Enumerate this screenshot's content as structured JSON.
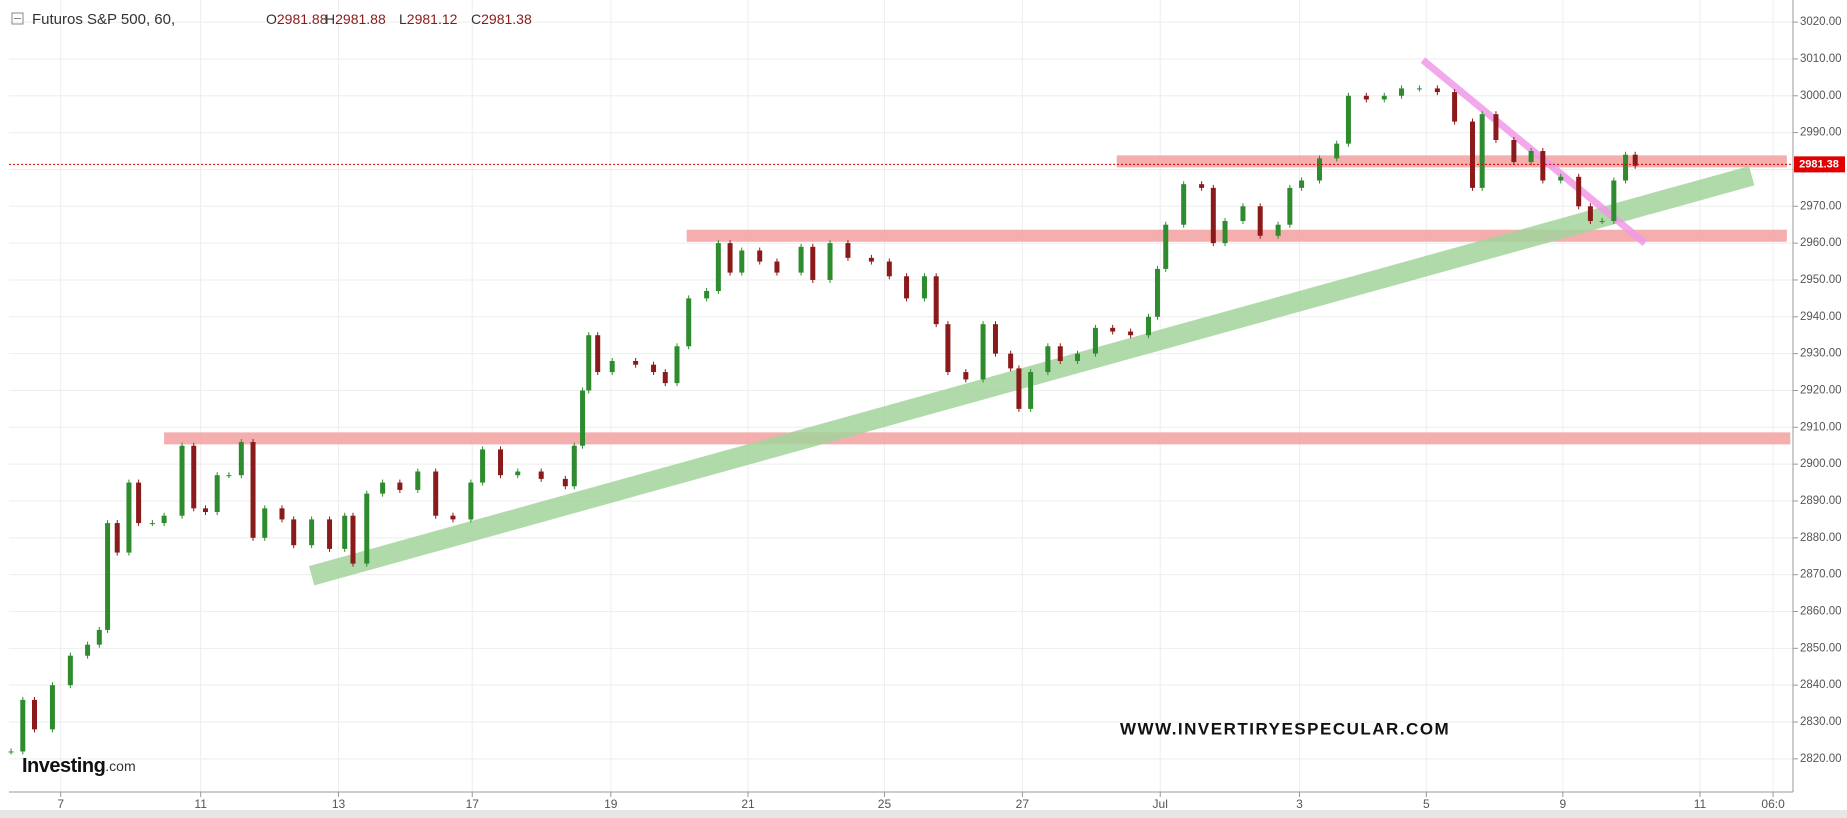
{
  "chart_data": {
    "type": "candlestick",
    "title": "Futuros S&P 500, 60,",
    "ohlc": [
      {
        "label": "O",
        "value": 2981.88
      },
      {
        "label": "H",
        "value": 2981.88
      },
      {
        "label": "L",
        "value": 2981.12
      },
      {
        "label": "C",
        "value": 2981.38
      }
    ],
    "last_price": 2981.38,
    "watermark": "WWW.INVERTIRYESPECULAR.COM",
    "logo": [
      "Investing",
      ".com"
    ],
    "up_color": "#2e8b2e",
    "down_color": "#8b1a1a",
    "x": [
      -0.72,
      -0.55,
      -0.38,
      -0.12,
      0.14,
      0.39,
      0.56,
      0.68,
      0.82,
      0.99,
      1.13,
      1.33,
      1.5,
      1.76,
      1.93,
      2.1,
      2.27,
      2.44,
      2.62,
      2.79,
      2.96,
      3.21,
      3.38,
      3.64,
      3.9,
      4.12,
      4.24,
      4.44,
      4.67,
      4.92,
      5.18,
      5.44,
      5.69,
      5.95,
      6.12,
      6.38,
      6.63,
      6.97,
      7.32,
      7.45,
      7.57,
      7.66,
      7.79,
      8,
      8.34,
      8.6,
      8.77,
      8.94,
      9.11,
      9.37,
      9.54,
      9.71,
      9.88,
      10.14,
      10.39,
      10.74,
      10.91,
      11.16,
      11.42,
      11.76,
      12.02,
      12.27,
      12.53,
      12.7,
      12.87,
      13.13,
      13.38,
      13.56,
      13.78,
      13.9,
      14.07,
      14.32,
      14.5,
      14.75,
      15.01,
      15.26,
      15.52,
      15.78,
      15.91,
      16.03,
      16.29,
      16.55,
      16.72,
      16.89,
      17.15,
      17.4,
      17.66,
      17.83,
      18,
      18.26,
      18.51,
      18.68,
      18.94,
      19.2,
      19.45,
      19.71,
      19.97,
      20.22,
      20.48,
      20.62,
      20.82,
      21.08,
      21.33,
      21.5,
      21.76,
      22.02,
      22.19,
      22.36,
      22.53,
      22.7,
      22.84
    ],
    "values": [
      2822,
      2836,
      2828,
      2840,
      2848,
      2851,
      2855,
      2884,
      2876,
      2895,
      2884,
      2884,
      2886,
      2905,
      2888,
      2887,
      2897,
      2897,
      2906,
      2880,
      2888,
      2885,
      2878,
      2885,
      2877,
      2886,
      2873,
      2892,
      2895,
      2893,
      2898,
      2886,
      2885,
      2895,
      2904,
      2897,
      2898,
      2896,
      2894,
      2905,
      2920,
      2935,
      2925,
      2928,
      2927,
      2925,
      2922,
      2932,
      2945,
      2947,
      2960,
      2952,
      2958,
      2955,
      2952,
      2959,
      2950,
      2960,
      2956,
      2955,
      2951,
      2945,
      2951,
      2938,
      2925,
      2923,
      2938,
      2930,
      2926,
      2915,
      2925,
      2932,
      2928,
      2930,
      2937,
      2936,
      2935,
      2940,
      2953,
      2965,
      2976,
      2975,
      2960,
      2966,
      2970,
      2962,
      2965,
      2975,
      2977,
      2983,
      2987,
      3000,
      2999,
      3000,
      3002,
      3002,
      3001,
      2993,
      2975,
      2995,
      2988,
      2982,
      2985,
      2977,
      2978,
      2970,
      2966,
      2966,
      2977,
      2984,
      2981
    ],
    "xlim": [
      -0.75,
      25.1
    ],
    "ylim": [
      2811,
      3026
    ],
    "xticks": [
      {
        "value": 0,
        "label": "7"
      },
      {
        "value": 2.03,
        "label": "11"
      },
      {
        "value": 4.03,
        "label": "13"
      },
      {
        "value": 5.97,
        "label": "17"
      },
      {
        "value": 7.98,
        "label": "19"
      },
      {
        "value": 9.97,
        "label": "21"
      },
      {
        "value": 11.95,
        "label": "25"
      },
      {
        "value": 13.95,
        "label": "27"
      },
      {
        "value": 15.95,
        "label": "Jul"
      },
      {
        "value": 17.97,
        "label": "3"
      },
      {
        "value": 19.81,
        "label": "5"
      },
      {
        "value": 21.79,
        "label": "9"
      },
      {
        "value": 23.78,
        "label": "11"
      },
      {
        "value": 24.84,
        "label": "06:0"
      }
    ],
    "yticks": [
      {
        "value": 2820,
        "label": "2820.00"
      },
      {
        "value": 2830,
        "label": "2830.00"
      },
      {
        "value": 2840,
        "label": "2840.00"
      },
      {
        "value": 2850,
        "label": "2850.00"
      },
      {
        "value": 2860,
        "label": "2860.00"
      },
      {
        "value": 2870,
        "label": "2870.00"
      },
      {
        "value": 2880,
        "label": "2880.00"
      },
      {
        "value": 2890,
        "label": "2890.00"
      },
      {
        "value": 2900,
        "label": "2900.00"
      },
      {
        "value": 2910,
        "label": "2910.00"
      },
      {
        "value": 2920,
        "label": "2920.00"
      },
      {
        "value": 2930,
        "label": "2930.00"
      },
      {
        "value": 2940,
        "label": "2940.00"
      },
      {
        "value": 2950,
        "label": "2950.00"
      },
      {
        "value": 2960,
        "label": "2960.00"
      },
      {
        "value": 2970,
        "label": "2970.00"
      },
      {
        "value": 2980,
        "label": "2980.00"
      },
      {
        "value": 2990,
        "label": "2990.00"
      },
      {
        "value": 3000,
        "label": "3000.00"
      },
      {
        "value": 3010,
        "label": "3010.00"
      },
      {
        "value": 3020,
        "label": "3020.00"
      }
    ],
    "grid": true,
    "annotations": [
      {
        "type": "hband",
        "color": "#f4a0a0",
        "y": 2962,
        "x": [
          9.08,
          25.04
        ]
      },
      {
        "type": "hband",
        "color": "#f4a0a0",
        "y": 2907,
        "x": [
          1.5,
          25.09
        ]
      },
      {
        "type": "hband",
        "color": "#f4a0a0",
        "y": 2982.2,
        "x": [
          15.32,
          25.04
        ]
      },
      {
        "type": "trend",
        "color": "#a3d49b",
        "x": [
          3.64,
          24.53
        ],
        "y": [
          2869.7,
          2978.3
        ]
      },
      {
        "type": "trend",
        "color": "#f09ae8",
        "x": [
          19.76,
          22.98
        ],
        "y": [
          3009.7,
          2960
        ]
      }
    ]
  }
}
